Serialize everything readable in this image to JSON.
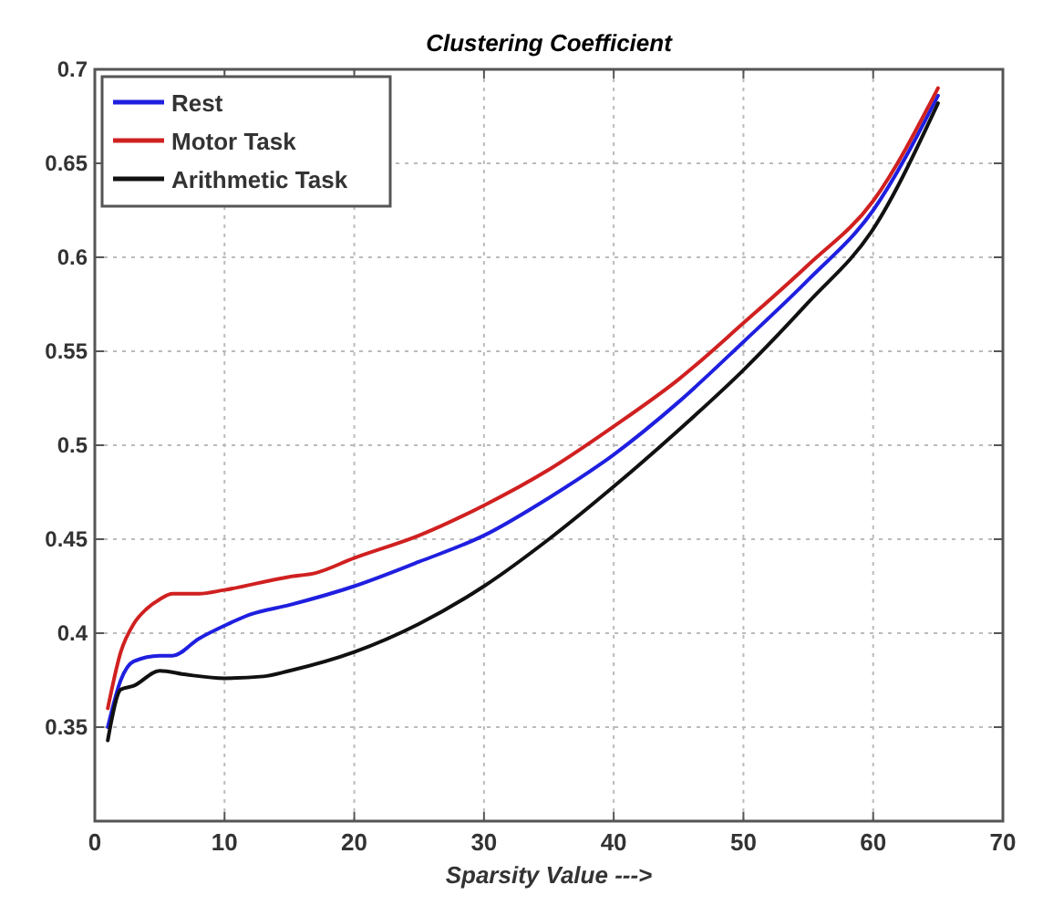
{
  "chart_data": {
    "type": "line",
    "title": "Clustering Coefficient",
    "xlabel": "Sparsity Value --->",
    "xlim": [
      0,
      70
    ],
    "xticks": [
      0,
      10,
      20,
      30,
      40,
      50,
      60,
      70
    ],
    "ylim": [
      0.3,
      0.7
    ],
    "yticks": [
      0.35,
      0.4,
      0.45,
      0.5,
      0.55,
      0.6,
      0.65,
      0.7
    ],
    "grid": true,
    "legend": "top left",
    "line_style": "solid",
    "marker": "none",
    "series": [
      {
        "name": "Rest",
        "color": "#1f1fe0",
        "x": [
          1,
          2,
          3,
          5,
          6,
          8,
          10,
          12,
          15,
          20,
          25,
          30,
          35,
          40,
          45,
          50,
          55,
          60,
          65
        ],
        "values": [
          0.35,
          0.375,
          0.385,
          0.388,
          0.388,
          0.397,
          0.404,
          0.41,
          0.415,
          0.425,
          0.438,
          0.452,
          0.472,
          0.495,
          0.523,
          0.555,
          0.588,
          0.625,
          0.686
        ]
      },
      {
        "name": "Motor Task",
        "color": "#d02020",
        "x": [
          1,
          2,
          3,
          4,
          5,
          6,
          8,
          10,
          15,
          17,
          20,
          25,
          30,
          35,
          40,
          45,
          50,
          55,
          60,
          65
        ],
        "values": [
          0.36,
          0.39,
          0.405,
          0.413,
          0.418,
          0.421,
          0.421,
          0.423,
          0.43,
          0.432,
          0.44,
          0.452,
          0.468,
          0.487,
          0.51,
          0.535,
          0.565,
          0.596,
          0.63,
          0.69
        ]
      },
      {
        "name": "Arithmetic Task",
        "color": "#111111",
        "x": [
          1,
          2,
          3,
          5,
          7,
          10,
          13,
          15,
          20,
          25,
          30,
          35,
          40,
          45,
          50,
          55,
          60,
          65
        ],
        "values": [
          0.343,
          0.37,
          0.372,
          0.38,
          0.378,
          0.376,
          0.377,
          0.38,
          0.39,
          0.405,
          0.425,
          0.45,
          0.478,
          0.508,
          0.54,
          0.576,
          0.615,
          0.682
        ]
      }
    ]
  }
}
